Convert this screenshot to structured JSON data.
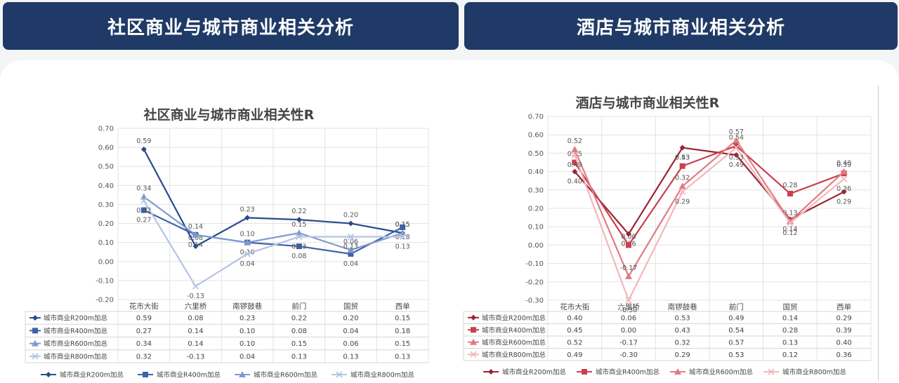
{
  "header": {
    "left_title": "社区商业与城市商业相关分析",
    "right_title": "酒店与城市商业相关分析"
  },
  "chart_data": [
    {
      "type": "line",
      "title": "社区商业与城市商业相关性R",
      "categories": [
        "花市大街",
        "六里桥",
        "南锣鼓巷",
        "前门",
        "国贸",
        "西单"
      ],
      "ylim": [
        -0.2,
        0.7
      ],
      "yticks": [
        "0.70",
        "0.60",
        "0.50",
        "0.40",
        "0.30",
        "0.20",
        "0.10",
        "0.00",
        "-0.10",
        "-0.20"
      ],
      "grid": true,
      "legend": "bottom",
      "series": [
        {
          "name": "城市商业R200m加总",
          "marker": "diamond",
          "color": "#2a4b8d",
          "values": [
            0.59,
            0.08,
            0.23,
            0.22,
            0.2,
            0.15
          ],
          "labels": [
            "0.59",
            "0.08",
            "0.23",
            "0.22",
            "0.20",
            "0.15"
          ]
        },
        {
          "name": "城市商业R400m加总",
          "marker": "square",
          "color": "#3d62a8",
          "values": [
            0.27,
            0.14,
            0.1,
            0.08,
            0.04,
            0.18
          ],
          "labels": [
            "0.27",
            "0.14",
            "0.10",
            "0.08",
            "0.04",
            "0.18"
          ]
        },
        {
          "name": "城市商业R600m加总",
          "marker": "triangle",
          "color": "#7e9ad0",
          "values": [
            0.34,
            0.14,
            0.1,
            0.15,
            0.06,
            0.15
          ],
          "labels": [
            "0.34",
            "0.14",
            "0.10",
            "0.15",
            "0.06",
            "0.15"
          ]
        },
        {
          "name": "城市商业R800m加总",
          "marker": "x",
          "color": "#b5c4e3",
          "values": [
            0.32,
            -0.13,
            0.04,
            0.13,
            0.13,
            0.13
          ],
          "labels": [
            "0.32",
            "-0.13",
            "0.04",
            "0.13",
            "0.13",
            "0.13"
          ]
        }
      ]
    },
    {
      "type": "line",
      "title": "酒店与城市商业相关性R",
      "categories": [
        "花市大街",
        "六里桥",
        "南锣鼓巷",
        "前门",
        "国贸",
        "西单"
      ],
      "ylim": [
        -0.3,
        0.7
      ],
      "yticks": [
        "0.70",
        "0.60",
        "0.50",
        "0.40",
        "0.30",
        "0.20",
        "0.10",
        "0.00",
        "-0.10",
        "-0.20",
        "-0.30"
      ],
      "grid": true,
      "legend": "bottom",
      "series": [
        {
          "name": "城市商业R200m加总",
          "marker": "diamond",
          "color": "#9b2335",
          "values": [
            0.4,
            0.06,
            0.53,
            0.49,
            0.14,
            0.29
          ],
          "labels": [
            "0.40",
            "0.06",
            "0.53",
            "0.49",
            "0.14",
            "0.29"
          ]
        },
        {
          "name": "城市商业R400m加总",
          "marker": "square",
          "color": "#c8404e",
          "values": [
            0.45,
            0.0,
            0.43,
            0.54,
            0.28,
            0.39
          ],
          "labels": [
            "0.45",
            "0.00",
            "0.43",
            "0.54",
            "0.28",
            "0.39"
          ]
        },
        {
          "name": "城市商业R600m加总",
          "marker": "triangle",
          "color": "#e07c84",
          "values": [
            0.52,
            -0.17,
            0.32,
            0.57,
            0.13,
            0.4
          ],
          "labels": [
            "0.52",
            "-0.17",
            "0.32",
            "0.57",
            "0.13",
            "0.40"
          ]
        },
        {
          "name": "城市商业R800m加总",
          "marker": "x",
          "color": "#f2b7bb",
          "values": [
            0.49,
            -0.3,
            0.29,
            0.53,
            0.12,
            0.36
          ],
          "labels": [
            "0.49",
            "-0.30",
            "0.29",
            "0.53",
            "0.12",
            "0.36"
          ]
        }
      ]
    }
  ]
}
